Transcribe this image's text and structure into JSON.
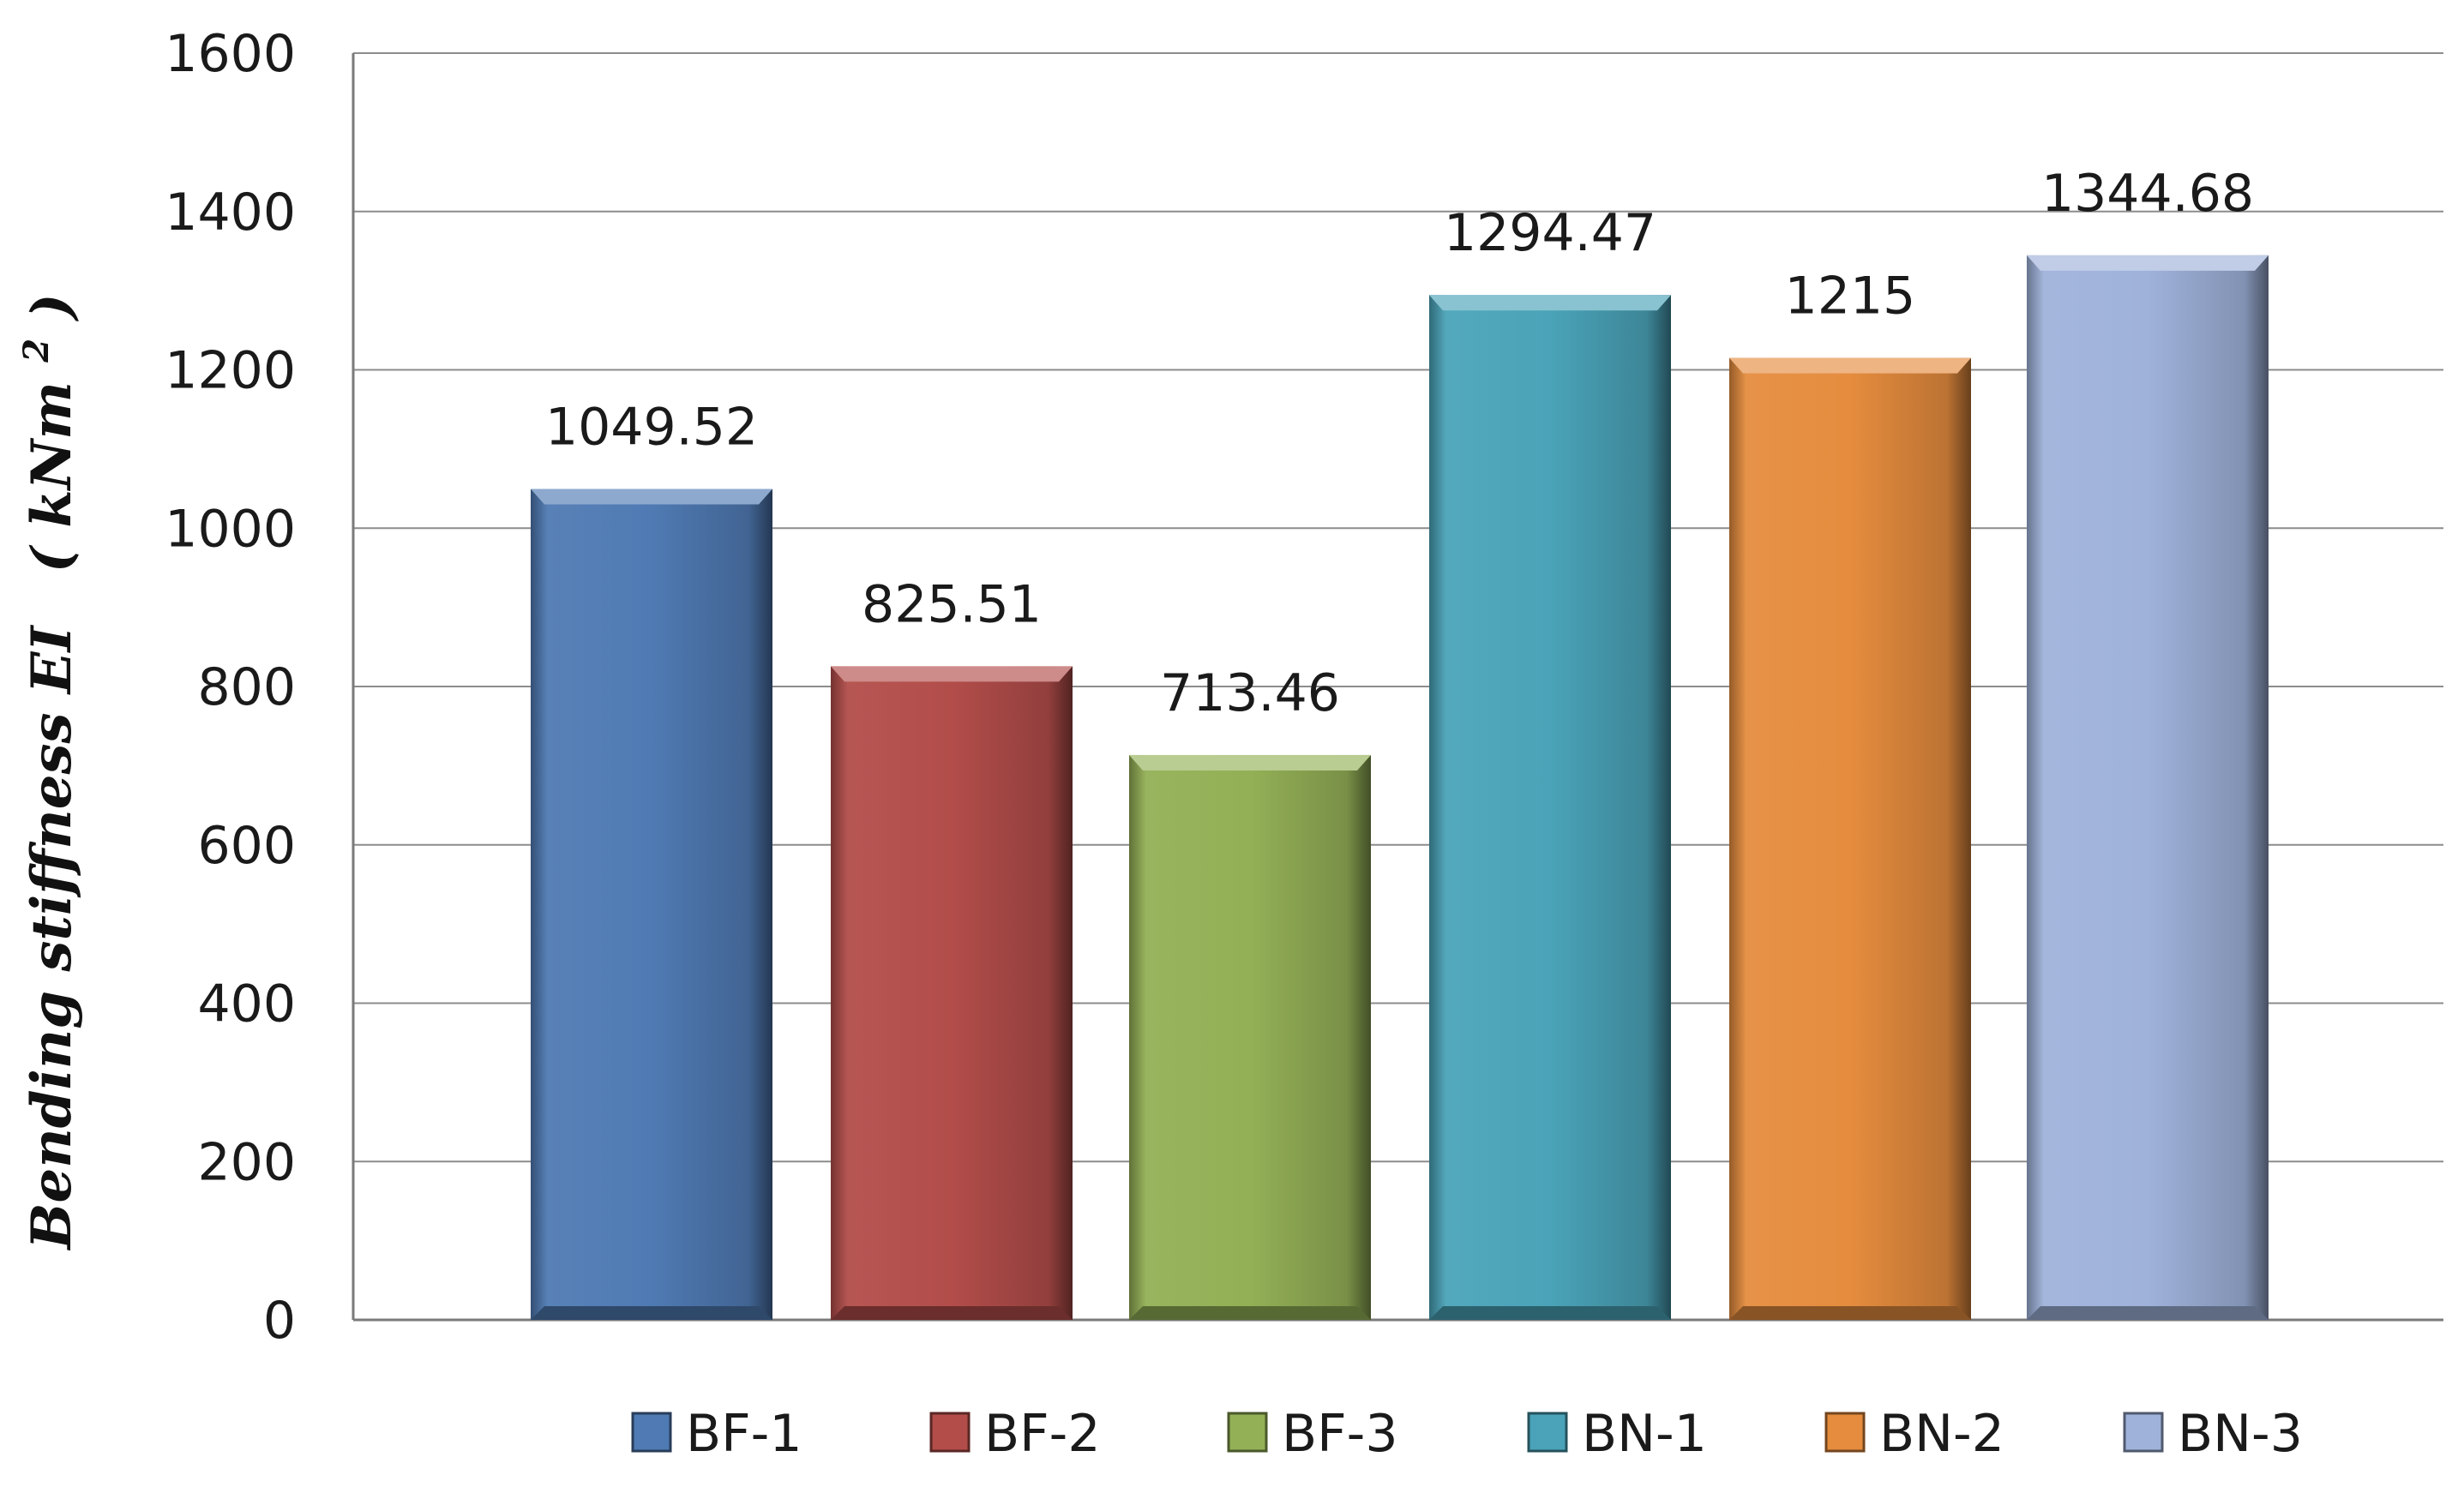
{
  "chart_data": {
    "type": "bar",
    "title": "",
    "xlabel": "",
    "ylabel": "Bending stiffness EI",
    "ylabel_unit_prefix": "(",
    "ylabel_unit": "kNm",
    "ylabel_unit_sup": "2",
    "ylabel_unit_suffix": ")",
    "ylim": [
      0,
      1600
    ],
    "yticks": [
      0,
      200,
      400,
      600,
      800,
      1000,
      1200,
      1400,
      1600
    ],
    "ytick_labels": [
      "0",
      "200",
      "400",
      "600",
      "800",
      "1000",
      "1200",
      "1400",
      "1600"
    ],
    "grid": true,
    "legend_position": "bottom",
    "categories": [
      "BF-1",
      "BF-2",
      "BF-3",
      "BN-1",
      "BN-2",
      "BN-3"
    ],
    "values": [
      1049.52,
      825.51,
      713.46,
      1294.47,
      1215,
      1344.68
    ],
    "value_labels": [
      "1049.52",
      "825.51",
      "713.46",
      "1294.47",
      "1215",
      "1344.68"
    ],
    "colors": [
      "#4F7AB3",
      "#B24D4A",
      "#93B056",
      "#4AA3B8",
      "#E58C3E",
      "#9FB2DA"
    ]
  }
}
